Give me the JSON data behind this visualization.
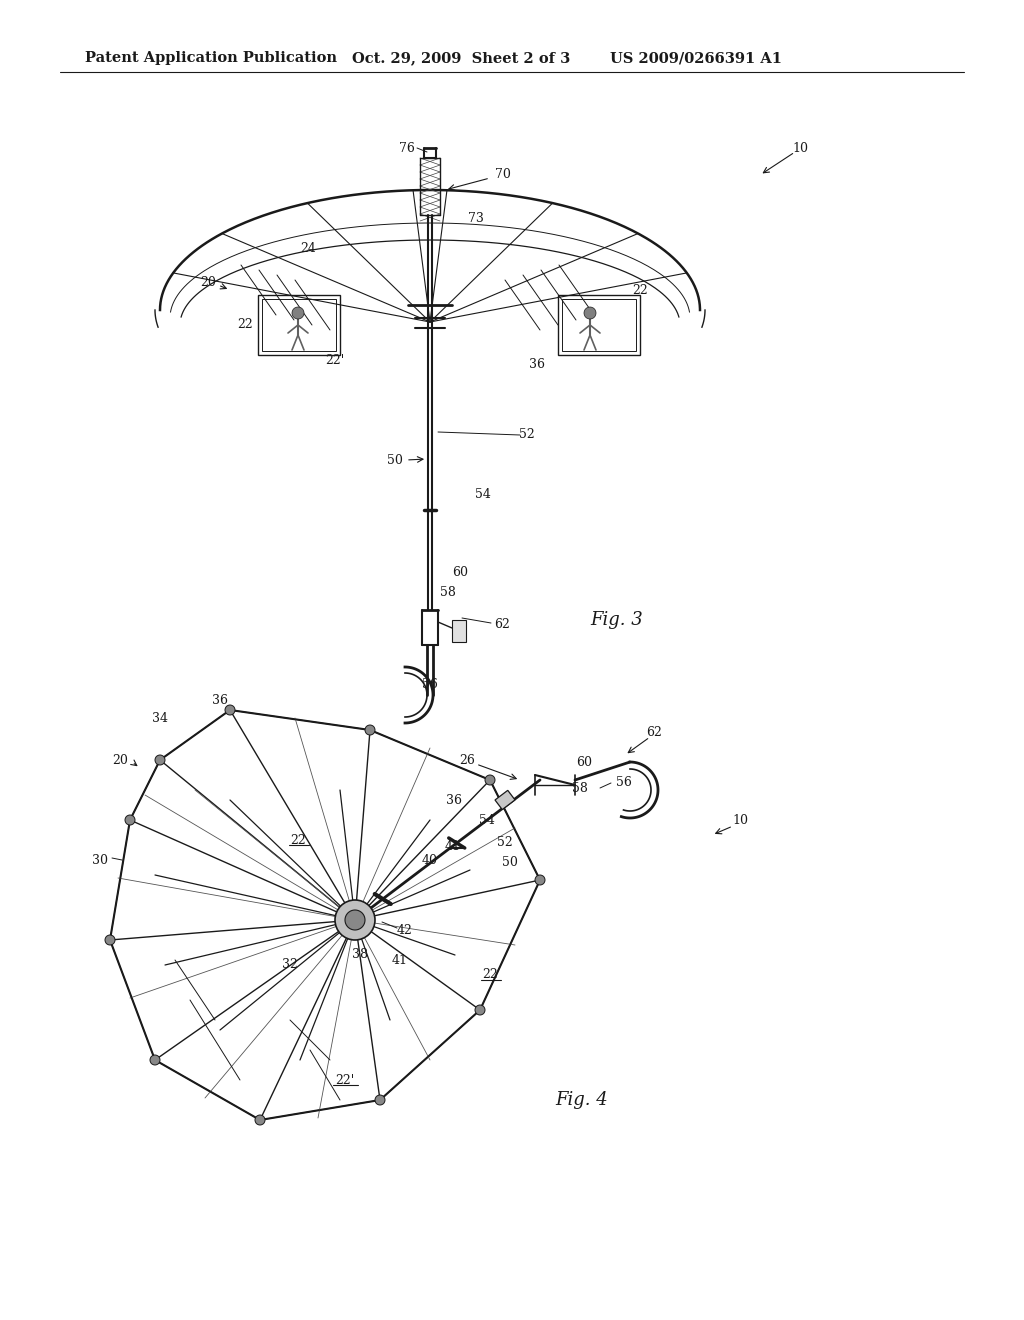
{
  "bg_color": "#ffffff",
  "header_text": "Patent Application Publication",
  "header_date": "Oct. 29, 2009  Sheet 2 of 3",
  "header_patent": "US 2009/0266391 A1",
  "fig3_label": "Fig. 3",
  "fig4_label": "Fig. 4",
  "line_color": "#1a1a1a",
  "text_color": "#1a1a1a",
  "font_size_header": 10.5,
  "font_size_labels": 9,
  "font_size_fig": 13
}
